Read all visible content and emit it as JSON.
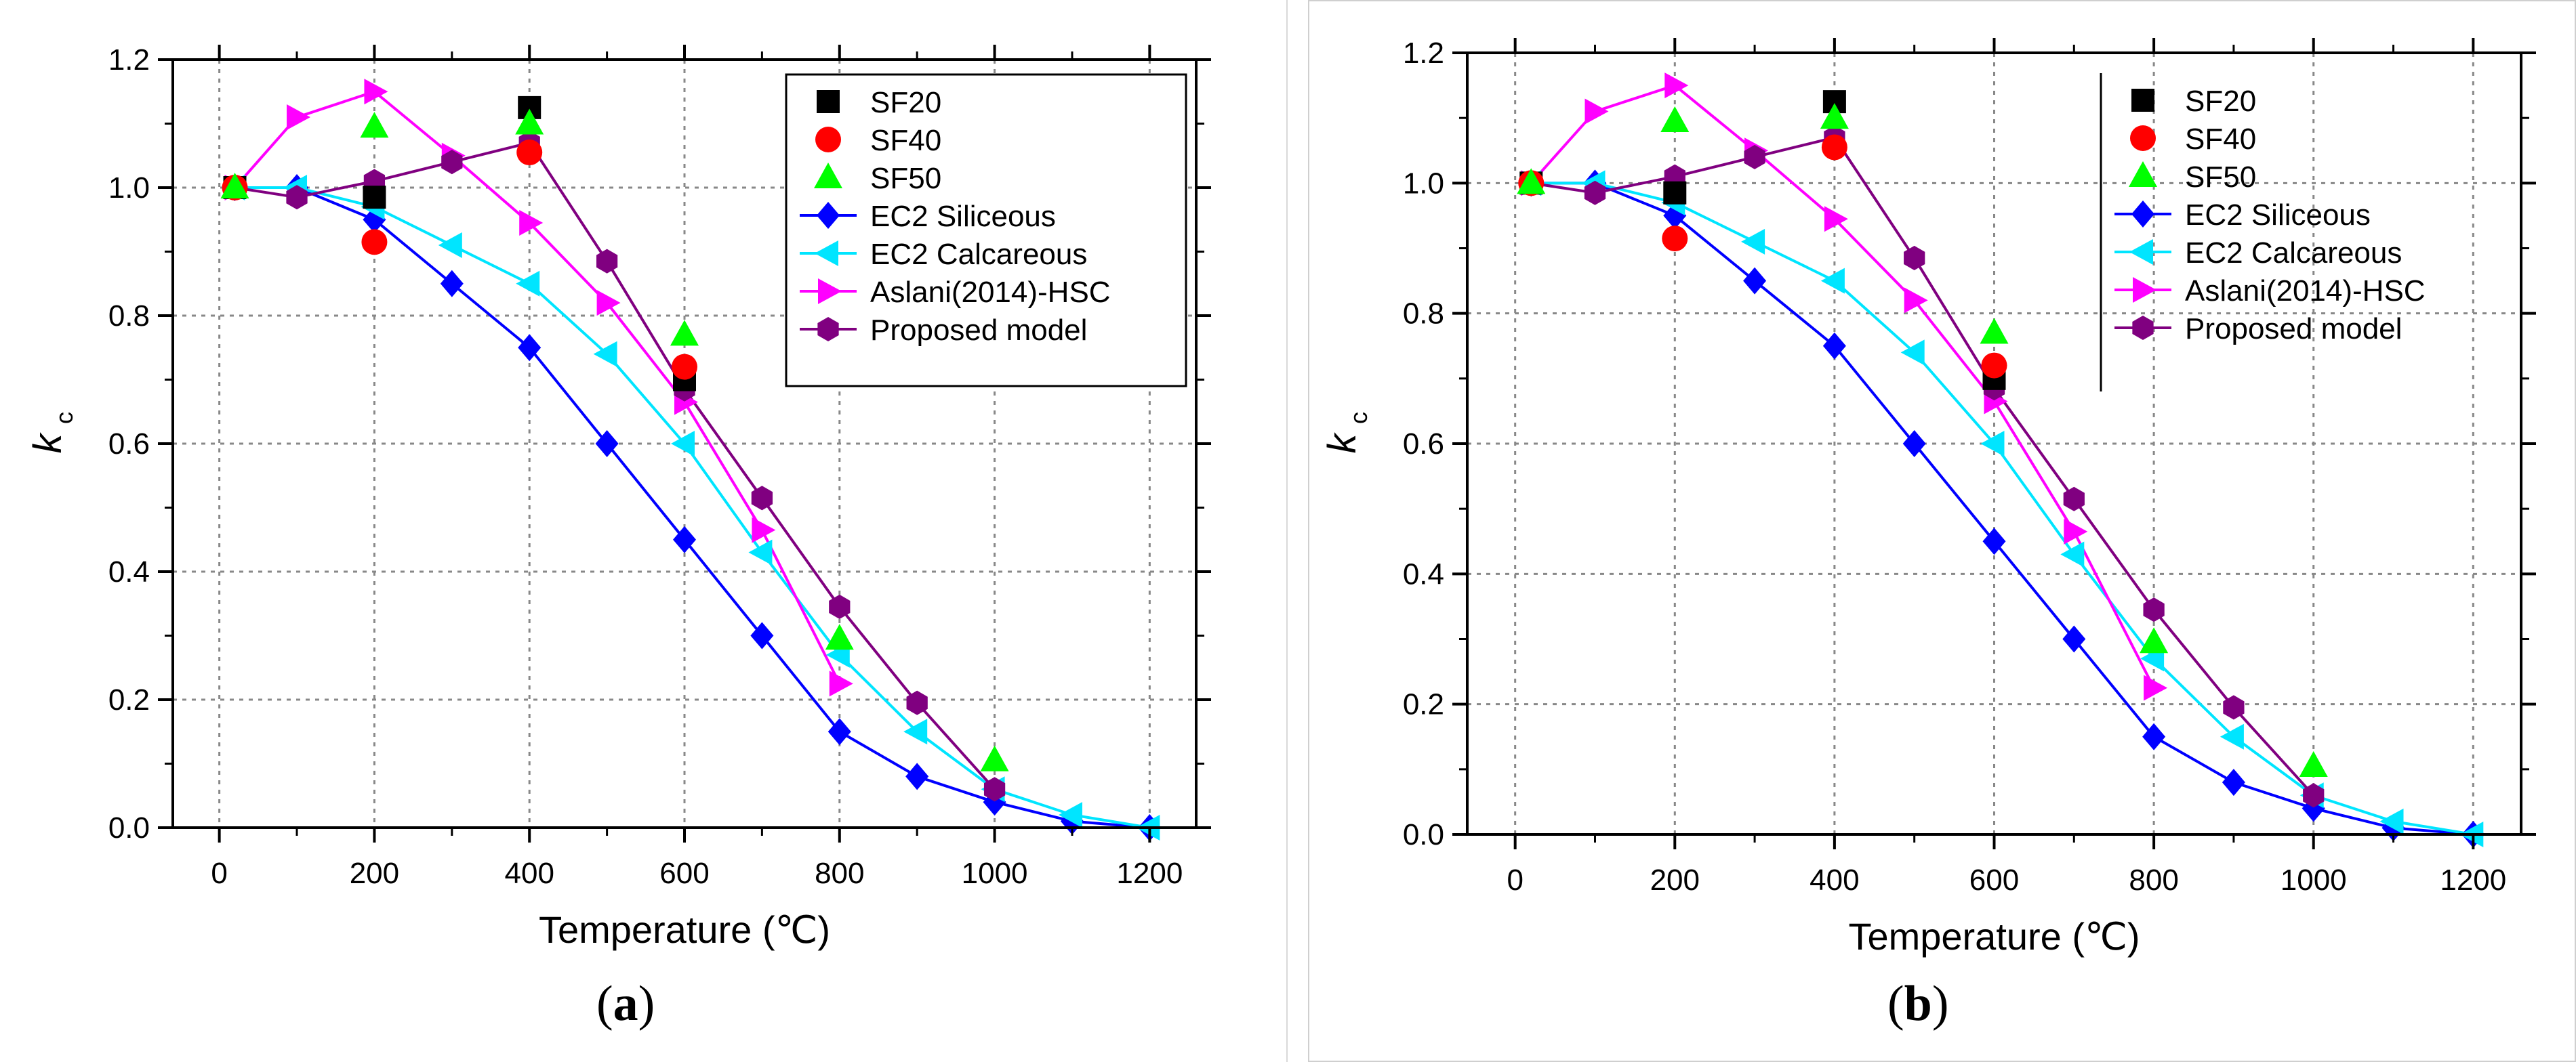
{
  "panels": [
    {
      "label": "a",
      "chart_data": {
        "type": "line",
        "xlabel": "Temperature (℃)",
        "ylabel": "k",
        "ylabel_sub": "c",
        "xlim": [
          -60,
          1260
        ],
        "ylim": [
          0,
          1.2
        ],
        "xticks": [
          "0",
          "200",
          "400",
          "600",
          "800",
          "1000",
          "1200"
        ],
        "yticks": [
          "0.0",
          "0.2",
          "0.4",
          "0.6",
          "0.8",
          "1.0",
          "1.2"
        ],
        "grid": "dotted",
        "legend_position": "top-right",
        "legend_style": "box",
        "series": [
          {
            "name": "SF20",
            "marker": "square",
            "color": "#000000",
            "line": false,
            "x": [
              20,
              200,
              400,
              600
            ],
            "y": [
              1.0,
              0.985,
              1.125,
              0.7
            ]
          },
          {
            "name": "SF40",
            "marker": "circle",
            "color": "#ff0000",
            "line": false,
            "x": [
              20,
              200,
              400,
              600
            ],
            "y": [
              1.0,
              0.915,
              1.055,
              0.72
            ]
          },
          {
            "name": "SF50",
            "marker": "triangle-up",
            "color": "#00ff00",
            "line": false,
            "x": [
              20,
              200,
              400,
              600,
              800,
              1000
            ],
            "y": [
              1.0,
              1.095,
              1.1,
              0.77,
              0.295,
              0.105
            ]
          },
          {
            "name": "EC2 Siliceous",
            "marker": "diamond",
            "color": "#0000ff",
            "line": true,
            "x": [
              20,
              100,
              200,
              300,
              400,
              500,
              600,
              700,
              800,
              900,
              1000,
              1100,
              1200
            ],
            "y": [
              1.0,
              1.0,
              0.95,
              0.85,
              0.75,
              0.6,
              0.45,
              0.3,
              0.15,
              0.08,
              0.04,
              0.01,
              0.0
            ]
          },
          {
            "name": "EC2 Calcareous",
            "marker": "triangle-left",
            "color": "#00e5ff",
            "line": true,
            "x": [
              20,
              100,
              200,
              300,
              400,
              500,
              600,
              700,
              800,
              900,
              1000,
              1100,
              1200
            ],
            "y": [
              1.0,
              1.0,
              0.97,
              0.91,
              0.85,
              0.74,
              0.6,
              0.43,
              0.27,
              0.15,
              0.06,
              0.02,
              0.0
            ]
          },
          {
            "name": "Aslani(2014)-HSC",
            "marker": "triangle-right",
            "color": "#ff00ff",
            "line": true,
            "x": [
              20,
              100,
              200,
              300,
              400,
              500,
              600,
              700,
              800
            ],
            "y": [
              1.0,
              1.11,
              1.15,
              1.05,
              0.945,
              0.82,
              0.665,
              0.465,
              0.225
            ]
          },
          {
            "name": "Proposed model",
            "marker": "hexagon",
            "color": "#800080",
            "line": true,
            "x": [
              20,
              100,
              200,
              300,
              400,
              500,
              600,
              700,
              800,
              900,
              1000
            ],
            "y": [
              1.0,
              0.985,
              1.01,
              1.04,
              1.07,
              0.885,
              0.685,
              0.515,
              0.345,
              0.195,
              0.06
            ]
          }
        ]
      }
    },
    {
      "label": "b",
      "chart_data": {
        "type": "line",
        "xlabel": "Temperature (℃)",
        "ylabel": "k",
        "ylabel_sub": "c",
        "xlim": [
          -60,
          1260
        ],
        "ylim": [
          0,
          1.2
        ],
        "xticks": [
          "0",
          "200",
          "400",
          "600",
          "800",
          "1000",
          "1200"
        ],
        "yticks": [
          "0.0",
          "0.2",
          "0.4",
          "0.6",
          "0.8",
          "1.0",
          "1.2"
        ],
        "grid": "dotted",
        "legend_position": "top-right",
        "legend_style": "left-line",
        "series": [
          {
            "name": "SF20",
            "marker": "square",
            "color": "#000000",
            "line": false,
            "x": [
              20,
              200,
              400,
              600
            ],
            "y": [
              1.0,
              0.985,
              1.125,
              0.7
            ]
          },
          {
            "name": "SF40",
            "marker": "circle",
            "color": "#ff0000",
            "line": false,
            "x": [
              20,
              200,
              400,
              600
            ],
            "y": [
              1.0,
              0.915,
              1.055,
              0.72
            ]
          },
          {
            "name": "SF50",
            "marker": "triangle-up",
            "color": "#00ff00",
            "line": false,
            "x": [
              20,
              200,
              400,
              600,
              800,
              1000
            ],
            "y": [
              1.0,
              1.095,
              1.1,
              0.77,
              0.295,
              0.105
            ]
          },
          {
            "name": "EC2 Siliceous",
            "marker": "diamond",
            "color": "#0000ff",
            "line": true,
            "x": [
              20,
              100,
              200,
              300,
              400,
              500,
              600,
              700,
              800,
              900,
              1000,
              1100,
              1200
            ],
            "y": [
              1.0,
              1.0,
              0.95,
              0.85,
              0.75,
              0.6,
              0.45,
              0.3,
              0.15,
              0.08,
              0.04,
              0.01,
              0.0
            ]
          },
          {
            "name": "EC2 Calcareous",
            "marker": "triangle-left",
            "color": "#00e5ff",
            "line": true,
            "x": [
              20,
              100,
              200,
              300,
              400,
              500,
              600,
              700,
              800,
              900,
              1000,
              1100,
              1200
            ],
            "y": [
              1.0,
              1.0,
              0.97,
              0.91,
              0.85,
              0.74,
              0.6,
              0.43,
              0.27,
              0.15,
              0.06,
              0.02,
              0.0
            ]
          },
          {
            "name": "Aslani(2014)-HSC",
            "marker": "triangle-right",
            "color": "#ff00ff",
            "line": true,
            "x": [
              20,
              100,
              200,
              300,
              400,
              500,
              600,
              700,
              800
            ],
            "y": [
              1.0,
              1.11,
              1.15,
              1.05,
              0.945,
              0.82,
              0.665,
              0.465,
              0.225
            ]
          },
          {
            "name": "Proposed model",
            "marker": "hexagon",
            "color": "#800080",
            "line": true,
            "x": [
              20,
              100,
              200,
              300,
              400,
              500,
              600,
              700,
              800,
              900,
              1000
            ],
            "y": [
              1.0,
              0.985,
              1.01,
              1.04,
              1.07,
              0.885,
              0.685,
              0.515,
              0.345,
              0.195,
              0.06
            ]
          }
        ]
      }
    }
  ]
}
